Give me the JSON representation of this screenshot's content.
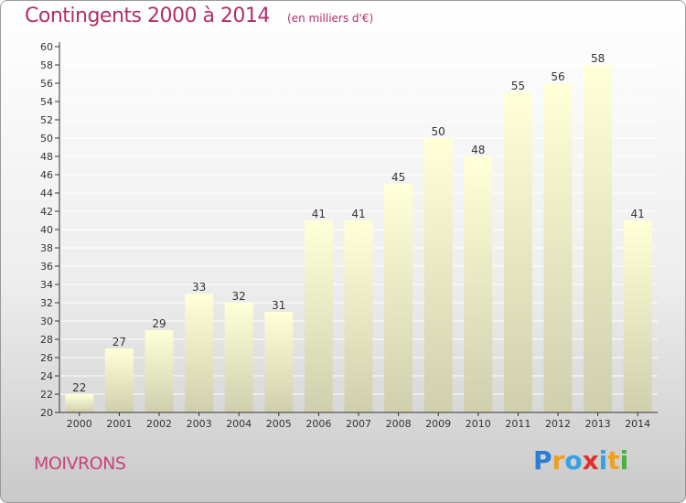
{
  "title": "Contingents 2000 à 2014",
  "subtitle": "(en milliers d'€)",
  "commune": "MOIVRONS",
  "logo": {
    "text": "Proxiti",
    "letters": [
      {
        "ch": "P",
        "color": "#2a7fd4"
      },
      {
        "ch": "r",
        "color": "#f0a020"
      },
      {
        "ch": "o",
        "color": "#3aa0e0"
      },
      {
        "ch": "x",
        "color": "#e03030"
      },
      {
        "ch": "i",
        "color": "#3aa0e0"
      },
      {
        "ch": "t",
        "color": "#f0a020"
      },
      {
        "ch": "i",
        "color": "#4ab040"
      }
    ]
  },
  "colors": {
    "title": "#b0306a",
    "bar_top": "#ffffd8",
    "bar_bottom": "#cfcfae",
    "grid": "#ffffff",
    "axis": "#333333"
  },
  "chart_data": {
    "type": "bar",
    "title": "Contingents 2000 à 2014",
    "subtitle": "(en milliers d'€)",
    "categories": [
      "2000",
      "2001",
      "2002",
      "2003",
      "2004",
      "2005",
      "2006",
      "2007",
      "2008",
      "2009",
      "2010",
      "2011",
      "2012",
      "2013",
      "2014"
    ],
    "values": [
      22,
      27,
      29,
      33,
      32,
      31,
      41,
      41,
      45,
      50,
      48,
      55,
      56,
      58,
      41
    ],
    "ylim": [
      20,
      60
    ],
    "yticks": [
      20,
      22,
      24,
      26,
      28,
      30,
      32,
      34,
      36,
      38,
      40,
      42,
      44,
      46,
      48,
      50,
      52,
      54,
      56,
      58,
      60
    ],
    "xlabel": "",
    "ylabel": "",
    "grid": true
  }
}
